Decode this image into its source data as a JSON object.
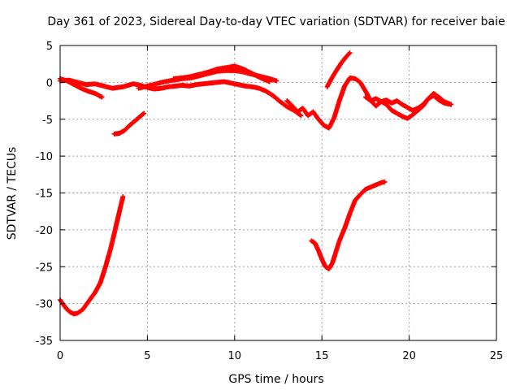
{
  "chart_data": {
    "type": "scatter",
    "title": "Day 361 of 2023, Sidereal Day-to-day VTEC variation (SDTVAR) for receiver baie",
    "xlabel": "GPS time / hours",
    "ylabel": "SDTVAR / TECUs",
    "xlim": [
      0,
      25
    ],
    "ylim": [
      -35,
      5
    ],
    "xticks": [
      0,
      5,
      10,
      15,
      20,
      25
    ],
    "yticks": [
      5,
      0,
      -5,
      -10,
      -15,
      -20,
      -25,
      -30,
      -35
    ],
    "grid": true,
    "marker": "plus",
    "color": "#ff0000",
    "series": [
      {
        "name": "arc-1",
        "x": [
          0.0,
          0.5,
          1.0,
          1.5,
          2.0,
          2.5,
          3.0,
          3.3,
          3.6,
          3.9,
          4.2,
          4.6,
          5.0,
          5.4,
          5.8,
          6.2,
          6.6,
          7.0,
          7.4,
          7.8,
          8.2,
          8.6,
          9.0,
          9.4,
          9.8,
          10.2,
          10.6,
          11.0,
          11.4,
          11.8,
          12.2,
          12.6,
          13.0,
          13.4,
          13.8
        ],
        "y": [
          0.2,
          0.3,
          0.0,
          -0.3,
          -0.2,
          -0.5,
          -0.8,
          -0.7,
          -0.6,
          -0.4,
          -0.2,
          -0.4,
          -0.7,
          -0.9,
          -0.8,
          -0.6,
          -0.5,
          -0.4,
          -0.5,
          -0.3,
          -0.2,
          -0.1,
          0.0,
          0.1,
          -0.1,
          -0.3,
          -0.5,
          -0.6,
          -0.8,
          -1.2,
          -1.8,
          -2.6,
          -3.3,
          -3.8,
          -4.5
        ]
      },
      {
        "name": "arc-2",
        "x": [
          0.0,
          0.4,
          0.8,
          1.2,
          1.6,
          2.0,
          2.4
        ],
        "y": [
          0.5,
          0.2,
          -0.3,
          -0.8,
          -1.2,
          -1.5,
          -2.0
        ]
      },
      {
        "name": "arc-3",
        "x": [
          4.5,
          5.0,
          5.5,
          6.0,
          6.5,
          7.0,
          7.5,
          8.0,
          8.5,
          9.0,
          9.5,
          10.0,
          10.5,
          11.0,
          11.5,
          12.0,
          12.4
        ],
        "y": [
          -0.8,
          -0.5,
          -0.2,
          0.1,
          0.3,
          0.5,
          0.6,
          0.9,
          1.2,
          1.5,
          1.6,
          1.6,
          1.4,
          1.1,
          0.8,
          0.5,
          0.2
        ]
      },
      {
        "name": "arc-4",
        "x": [
          6.5,
          7.0,
          7.5,
          8.0,
          8.5,
          9.0,
          9.5,
          10.0,
          10.5,
          11.0,
          11.5,
          12.0
        ],
        "y": [
          0.5,
          0.6,
          0.8,
          1.1,
          1.4,
          1.8,
          2.0,
          2.2,
          1.8,
          1.2,
          0.6,
          0.1
        ]
      },
      {
        "name": "arc-5",
        "x": [
          3.1,
          3.4,
          3.7,
          4.0,
          4.3,
          4.6,
          4.8
        ],
        "y": [
          -7.0,
          -6.9,
          -6.5,
          -5.8,
          -5.2,
          -4.6,
          -4.2
        ]
      },
      {
        "name": "arc-6",
        "x": [
          0.0,
          0.2,
          0.4,
          0.6,
          0.8,
          1.0,
          1.3,
          1.6,
          2.0,
          2.3,
          2.6,
          2.9,
          3.1,
          3.3,
          3.5,
          3.6
        ],
        "y": [
          -29.5,
          -30.2,
          -30.8,
          -31.2,
          -31.4,
          -31.3,
          -30.8,
          -29.8,
          -28.5,
          -27.2,
          -25.0,
          -22.5,
          -20.5,
          -18.5,
          -16.5,
          -15.5
        ]
      },
      {
        "name": "arc-7",
        "x": [
          13.0,
          13.3,
          13.6,
          13.9,
          14.2,
          14.5,
          14.8,
          15.1,
          15.4,
          15.7,
          16.0,
          16.3,
          16.6,
          16.9,
          17.2,
          17.5,
          17.8,
          18.1,
          18.4,
          18.7,
          19.0,
          19.3,
          19.6,
          19.9,
          20.2,
          20.5,
          20.8,
          21.1,
          21.4,
          21.7,
          22.0,
          22.4
        ],
        "y": [
          -2.5,
          -3.2,
          -4.0,
          -3.5,
          -4.5,
          -4.0,
          -5.0,
          -5.8,
          -6.2,
          -4.8,
          -2.5,
          -0.5,
          0.6,
          0.5,
          0.0,
          -1.2,
          -2.5,
          -3.2,
          -2.6,
          -3.0,
          -3.8,
          -4.2,
          -4.6,
          -4.9,
          -4.4,
          -3.8,
          -3.2,
          -2.2,
          -1.5,
          -2.0,
          -2.6,
          -3.0
        ]
      },
      {
        "name": "arc-8",
        "x": [
          17.5,
          17.8,
          18.1,
          18.4,
          18.7,
          19.0,
          19.3,
          19.6,
          19.9,
          20.2,
          20.5,
          20.8,
          21.1,
          21.4,
          21.7,
          22.0,
          22.4
        ],
        "y": [
          -2.0,
          -2.5,
          -2.2,
          -2.6,
          -2.4,
          -2.8,
          -2.5,
          -3.0,
          -3.4,
          -3.8,
          -3.5,
          -3.0,
          -2.2,
          -1.8,
          -2.4,
          -2.8,
          -3.0
        ]
      },
      {
        "name": "arc-9",
        "x": [
          15.3,
          15.5,
          15.8,
          16.1,
          16.4,
          16.6
        ],
        "y": [
          -0.6,
          0.3,
          1.5,
          2.6,
          3.5,
          4.0
        ]
      },
      {
        "name": "arc-10",
        "x": [
          14.4,
          14.6,
          14.8,
          15.0,
          15.2,
          15.4,
          15.6,
          15.8,
          16.0,
          16.3,
          16.6,
          16.9,
          17.2,
          17.5,
          17.8,
          18.1,
          18.4,
          18.6
        ],
        "y": [
          -21.5,
          -21.8,
          -22.8,
          -24.0,
          -25.0,
          -25.3,
          -24.5,
          -23.0,
          -21.5,
          -19.8,
          -17.8,
          -16.0,
          -15.2,
          -14.5,
          -14.2,
          -13.9,
          -13.6,
          -13.5
        ]
      }
    ]
  }
}
